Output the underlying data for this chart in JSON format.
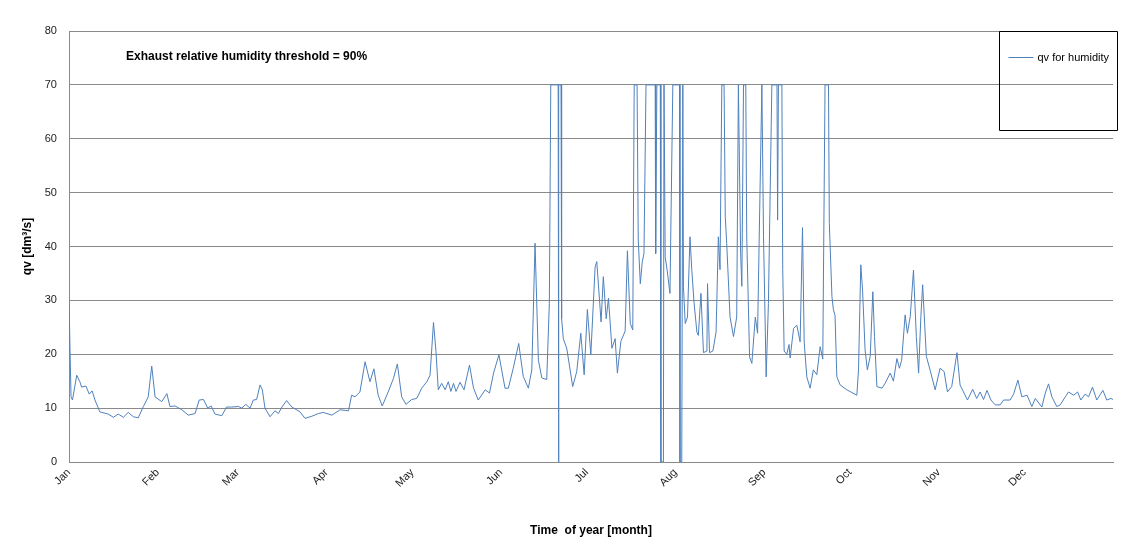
{
  "chart_data": {
    "type": "line",
    "annotations": [
      "Exhaust relative humidity threshold = 90%"
    ],
    "xlabel": "Time  of year [month]",
    "ylabel": "qv [dm³/s]",
    "x": [
      "--01-01",
      "--01-01T17:00",
      "--01-02T05:00",
      "--01-03T17:00",
      "--01-04T19:00",
      "--01-05T10:00",
      "--01-06T22:00",
      "--01-08T02:00",
      "--01-09T02:00",
      "--01-10T02:00",
      "--01-11T19:00",
      "--01-14T17:00",
      "--01-16T12:00",
      "--01-18T05:00",
      "--01-20",
      "--01-21T17:00",
      "--01-23T12:00",
      "--01-25T05:00",
      "--01-27",
      "--01-28T17:00",
      "--01-29T22:00",
      "--01-31T02:00",
      "--02-02T10:00",
      "--02-04T05:00",
      "--02-05T07:00",
      "--02-07T02:00",
      "--02-09T10:00",
      "--02-11T17:00",
      "--02-14T02:00",
      "--02-15T12:00",
      "--02-17",
      "--02-18T12:00",
      "--02-19T17:00",
      "--02-21",
      "--02-23T10:00",
      "--02-25T02:00",
      "--02-26T22:00",
      "--03-01T05:00",
      "--03-02T10:00",
      "--03-03T19:00",
      "--03-05T07:00",
      "--03-06T10:00",
      "--03-07T14:00",
      "--03-08T19:00",
      "--03-09T14:00",
      "--03-10T12:00",
      "--03-12T07:00",
      "--03-14",
      "--03-15T05:00",
      "--03-16T10:00",
      "--03-18T02:00",
      "--03-19T22:00",
      "--03-22T19:00",
      "--03-24T12:00",
      "--03-26T22:00",
      "--03-29T05:00",
      "--03-30T22:00",
      "--04-02T22:00",
      "--04-05T19:00",
      "--04-08T17:00",
      "--04-09T19:00",
      "--04-11",
      "--04-12T17:00",
      "--04-14T12:00",
      "--04-16T05:00",
      "--04-17T14:00",
      "--04-19T02:00",
      "--04-20T12:00",
      "--04-22T14:00",
      "--04-24T10:00",
      "--04-25T19:00",
      "--04-27T07:00",
      "--04-28T19:00",
      "--04-30T19:00",
      "--05-02T14:00",
      "--05-04T07:00",
      "--05-06T02:00",
      "--05-07T05:00",
      "--05-08T10:00",
      "--05-09T07:00",
      "--05-10T02:00",
      "--05-11T07:00",
      "--05-12T12:00",
      "--05-13T14:00",
      "--05-14T12:00",
      "--05-15T10:00",
      "--05-16T07:00",
      "--05-17T17:00",
      "--05-19T02:00",
      "--05-21",
      "--05-22T10:00",
      "--05-24T02:00",
      "--05-26T12:00",
      "--05-28",
      "--05-29T10:00",
      "--05-31T07:00",
      "--06-02T10:00",
      "--06-03T14:00",
      "--06-05T07:00",
      "--06-07T05:00",
      "--06-08T19:00",
      "--06-10T14:00",
      "--06-11T19:00",
      "--06-12T22:00",
      "--06-14T02:00",
      "--06-15T07:00",
      "--06-17",
      "--06-17T22:00",
      "--06-18T10:00",
      "--06-21",
      "--06-21T02:00",
      "--06-21T07:00",
      "--06-22",
      "--06-22T05:00",
      "--06-22T19:00",
      "--06-24",
      "--06-26T02:00",
      "--06-27T12:00",
      "--06-28T22:00",
      "--06-30T02:00",
      "--07-01T05:00",
      "--07-02T10:00",
      "--07-03T22:00",
      "--07-04T12:00",
      "--07-06",
      "--07-06T19:00",
      "--07-07T19:00",
      "--07-08T14:00",
      "--07-09T19:00",
      "--07-10T22:00",
      "--07-11T17:00",
      "--07-12T22:00",
      "--07-14T10:00",
      "--07-15T05:00",
      "--07-16T05:00",
      "--07-17T02:00",
      "--07-17T14:00",
      "--07-18T14:00",
      "--07-19",
      "--07-19T17:00",
      "--07-20T10:00",
      "--07-21",
      "--07-21T17:00",
      "--07-24T22:00",
      "--07-25T02:00",
      "--07-25T12:00",
      "--07-26T17:00",
      "--07-26T22:00",
      "--07-27T19:00",
      "--07-28",
      "--07-28T10:00",
      "--07-29",
      "--07-30T02:00",
      "--07-31T02:00",
      "--08-02T10:00",
      "--08-02T14:00",
      "--08-03T05:00",
      "--08-03T14:00",
      "--08-03T19:00",
      "--08-04T10:00",
      "--08-05T05:00",
      "--08-06T02:00",
      "--08-06T17:00",
      "--08-07T12:00",
      "--08-08T12:00",
      "--08-09",
      "--08-09T22:00",
      "--08-10T19:00",
      "--08-12",
      "--08-12T05:00",
      "--08-12T22:00",
      "--08-14T02:00",
      "--08-15T05:00",
      "--08-16",
      "--08-16T14:00",
      "--08-17T05:00",
      "--08-18",
      "--08-18T10:00",
      "--08-18T22:00",
      "--08-20T02:00",
      "--08-21T07:00",
      "--08-22T10:00",
      "--08-23",
      "--08-23T19:00",
      "--08-24T05:00",
      "--08-24T19:00",
      "--08-25T14:00",
      "--08-25T22:00",
      "--08-26T22:00",
      "--08-27T17:00",
      "--08-28T22:00",
      "--08-29T17:00",
      "--08-31T05:00",
      "--08-31T19:00",
      "--09-01T17:00",
      "--09-02T12:00",
      "--09-03T17:00",
      "--09-05T12:00",
      "--09-05T17:00",
      "--09-06",
      "--09-07T05:00",
      "--09-07T12:00",
      "--09-08",
      "--09-08T22:00",
      "--09-09T17:00",
      "--09-10T02:00",
      "--09-11T07:00",
      "--09-12T10:00",
      "--09-13T14:00",
      "--09-14T10:00",
      "--09-15",
      "--09-15T22:00",
      "--09-17T02:00",
      "--09-18T05:00",
      "--09-19T10:00",
      "--09-20T14:00",
      "--09-21T12:00",
      "--09-22T07:00",
      "--09-23T12:00",
      "--09-23T19:00",
      "--09-24T17:00",
      "--09-25T05:00",
      "--09-25T19:00",
      "--09-26T10:00",
      "--09-27T14:00",
      "--09-29T22:00",
      "--10-03T10:00",
      "--10-04",
      "--10-04T19:00",
      "--10-05T10:00",
      "--10-06T07:00",
      "--10-07T02:00",
      "--10-08T02:00",
      "--10-09",
      "--10-09T14:00",
      "--10-10T10:00",
      "--10-12T05:00",
      "--10-13T07:00",
      "--10-15T02:00",
      "--10-16T05:00",
      "--10-17T10:00",
      "--10-18T07:00",
      "--10-19T02:00",
      "--10-20T07:00",
      "--10-21T02:00",
      "--10-22T02:00",
      "--10-23T05:00",
      "--10-24T05:00",
      "--10-25",
      "--10-25T19:00",
      "--10-26T10:00",
      "--10-27T17:00",
      "--10-29",
      "--10-30T19:00",
      "--11-01T12:00",
      "--11-02T22:00",
      "--11-04T02:00",
      "--11-05T14:00",
      "--11-07T10:00",
      "--11-08T12:00",
      "--11-11T02:00",
      "--11-12T22:00",
      "--11-14T07:00",
      "--11-15T12:00",
      "--11-16T17:00",
      "--11-17T22:00",
      "--11-19T07:00",
      "--11-20T19:00",
      "--11-22T12:00",
      "--11-23T17:00",
      "--11-26",
      "--11-27T05:00",
      "--11-28T17:00",
      "--11-30T02:00",
      "--12-01T22:00",
      "--12-03T14:00",
      "--12-04T19:00",
      "--12-07T02:00",
      "--12-08T07:00",
      "--12-09T10:00",
      "--12-10T14:00",
      "--12-12T07:00",
      "--12-13T12:00",
      "--12-15T07:00",
      "--12-16T10:00",
      "--12-18T05:00",
      "--12-19T14:00",
      "--12-20T17:00",
      "--12-22T05:00",
      "--12-23T10:00",
      "--12-24T19:00",
      "--12-26T07:00",
      "--12-28T10:00",
      "--12-29T19:00",
      "--12-31T05:00",
      "--12-31T23:00"
    ],
    "series": [
      {
        "name": "qv for humidity",
        "color": "#4f81bd",
        "values": [
          30,
          12.1,
          11.5,
          16.1,
          14.9,
          13.9,
          14.1,
          12.6,
          13.2,
          11.5,
          9.3,
          8.9,
          8.3,
          8.9,
          8.3,
          9.2,
          8.4,
          8.2,
          10.3,
          12.1,
          17.8,
          12.1,
          11.2,
          12.7,
          10.3,
          10.4,
          9.7,
          8.7,
          9,
          11.5,
          11.6,
          10,
          10.4,
          8.9,
          8.6,
          10.2,
          10.2,
          10.3,
          10,
          10.7,
          10,
          11.5,
          11.6,
          14.3,
          13.4,
          10,
          8.4,
          9.5,
          9,
          10.2,
          11.4,
          10.2,
          9.3,
          8.1,
          8.5,
          9,
          9.2,
          8.7,
          9.7,
          9.5,
          12.4,
          12.1,
          13,
          18.6,
          14.9,
          17.3,
          12.4,
          10.4,
          13,
          15.5,
          18.2,
          12.1,
          10.7,
          11.6,
          11.8,
          13.7,
          14.9,
          16.1,
          25.9,
          20.5,
          13.4,
          14.6,
          13.4,
          14.9,
          13.1,
          14.6,
          13.1,
          14.8,
          13.4,
          18,
          13.7,
          11.5,
          13.4,
          12.8,
          16.5,
          19.9,
          13.7,
          13.7,
          17.4,
          22,
          15.9,
          13.7,
          17.1,
          40.6,
          18.9,
          15.6,
          15.3,
          29.4,
          70,
          70,
          0,
          70,
          70,
          26.6,
          22.9,
          21.1,
          14,
          16.8,
          23.9,
          16.2,
          28.3,
          19.9,
          36.2,
          37.2,
          26,
          34.4,
          26.6,
          30.4,
          21.1,
          22.9,
          16.5,
          22.4,
          24.3,
          39.2,
          25.7,
          24.5,
          70,
          70,
          41.2,
          33.1,
          37.2,
          38.7,
          70,
          70,
          38.7,
          70,
          70,
          0,
          0,
          70,
          38,
          36,
          31.3,
          70,
          70,
          0,
          0,
          70,
          32.6,
          25.7,
          26.9,
          41.8,
          35.7,
          29.6,
          24.1,
          23.5,
          31.3,
          20.3,
          20.6,
          33.1,
          20.3,
          20.6,
          24.1,
          41.8,
          35.7,
          70,
          70,
          45.5,
          40.6,
          26.9,
          23.3,
          26.9,
          70,
          38.7,
          32.6,
          70,
          70,
          41.8,
          19.5,
          18.3,
          26.9,
          23.9,
          70,
          41.8,
          15.8,
          29.4,
          70,
          70,
          44.9,
          70,
          70,
          35.7,
          20.6,
          20,
          21.8,
          19.3,
          24.8,
          25.4,
          22.3,
          43.5,
          22.3,
          15.8,
          13.7,
          17.1,
          16.2,
          21.4,
          19.1,
          70,
          70,
          44.3,
          30.7,
          28.3,
          27.2,
          15.8,
          14.3,
          13.4,
          12.4,
          17.1,
          36.6,
          31.9,
          20.8,
          17.1,
          19.6,
          31.6,
          23.3,
          14,
          13.7,
          14.6,
          16.5,
          15,
          19.2,
          17.4,
          18.9,
          27.3,
          23.9,
          27,
          35.6,
          23.3,
          16.5,
          27,
          32.9,
          19.6,
          17.1,
          13.4,
          17.4,
          16.8,
          13,
          14,
          20.3,
          14.3,
          11.5,
          13.5,
          11.8,
          13,
          11.6,
          13.3,
          11.5,
          10.6,
          10.6,
          11.5,
          11.5,
          12.6,
          15.2,
          12.1,
          12.4,
          10.3,
          11.8,
          10.2,
          12.8,
          14.5,
          12.1,
          10.3,
          10.6,
          12.1,
          13,
          12.4,
          13,
          11.5,
          12.6,
          12.1,
          13.9,
          11.5,
          13.3,
          11.5,
          11.8,
          11.6
        ]
      }
    ],
    "xlim": [
      "--01-01",
      "--12-31T23:00"
    ],
    "xticks": [
      {
        "value": "--01-01",
        "label": "Jan"
      },
      {
        "value": "--02-01",
        "label": "Feb"
      },
      {
        "value": "--03-01",
        "label": "Mar"
      },
      {
        "value": "--04-01",
        "label": "Apr"
      },
      {
        "value": "--05-01",
        "label": "May"
      },
      {
        "value": "--06-01",
        "label": "Jun"
      },
      {
        "value": "--07-01",
        "label": "Jul"
      },
      {
        "value": "--08-01",
        "label": "Aug"
      },
      {
        "value": "--09-01",
        "label": "Sep"
      },
      {
        "value": "--10-01",
        "label": "Oct"
      },
      {
        "value": "--11-01",
        "label": "Nov"
      },
      {
        "value": "--12-01",
        "label": "Dec"
      }
    ],
    "ylim": [
      0,
      80
    ],
    "yticks": [
      0,
      10,
      20,
      30,
      40,
      50,
      60,
      70,
      80
    ],
    "grid": "y",
    "legend": "top right",
    "marker": "none",
    "line_style": "solid"
  }
}
